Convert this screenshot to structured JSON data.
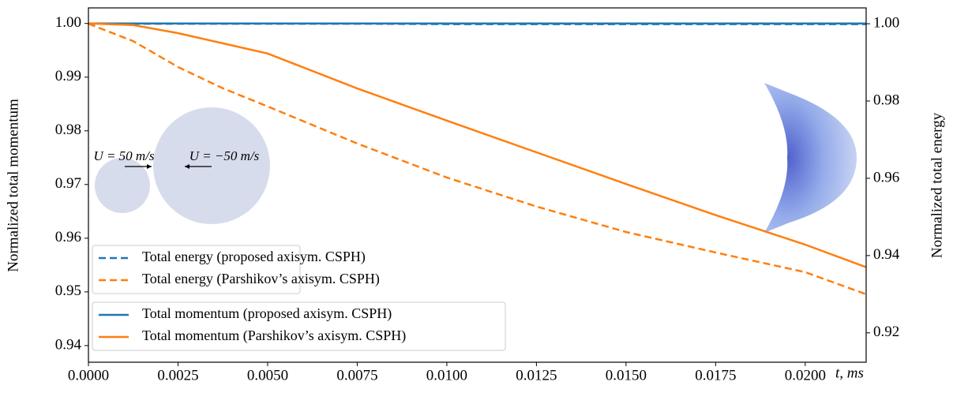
{
  "chart_data": {
    "type": "line",
    "xlabel": "t, ms",
    "ylabel": "Normalized total momentum",
    "y2label": "Normalized total energy",
    "annotations": [
      "U = 50 m/s",
      "U = −50 m/s"
    ],
    "x": [
      0,
      0.00125,
      0.0025,
      0.00375,
      0.005,
      0.0075,
      0.01,
      0.0125,
      0.015,
      0.0175,
      0.02,
      0.0217
    ],
    "series": [
      {
        "name": "Total energy (proposed axisym. CSPH)",
        "color": "#1f77b4",
        "linestyle": "dashed",
        "axis": "y2",
        "values": [
          1.0,
          1.0,
          1.0,
          1.0,
          1.0,
          1.0,
          0.9999,
          0.9999,
          0.9999,
          0.9999,
          0.9999,
          0.9999
        ]
      },
      {
        "name": "Total energy (Parshikov’s axisym. CSPH)",
        "color": "#ff7f0e",
        "linestyle": "dashed",
        "axis": "y2",
        "values": [
          1.0,
          0.9955,
          0.9888,
          0.9833,
          0.9786,
          0.969,
          0.9602,
          0.9527,
          0.9461,
          0.9408,
          0.9357,
          0.93
        ]
      },
      {
        "name": "Total momentum (proposed axisym. CSPH)",
        "color": "#1f77b4",
        "linestyle": "solid",
        "values": [
          1.0,
          1.0,
          1.0,
          1.0,
          1.0,
          1.0,
          1.0,
          1.0,
          1.0,
          1.0,
          1.0,
          1.0
        ]
      },
      {
        "name": "Total momentum (Parshikov’s axisym. CSPH)",
        "color": "#ff7f0e",
        "linestyle": "solid",
        "values": [
          1.0,
          0.9997,
          0.9982,
          0.9963,
          0.9944,
          0.9879,
          0.9819,
          0.976,
          0.9701,
          0.9643,
          0.9588,
          0.9546
        ]
      }
    ],
    "xlim": [
      0,
      0.0217
    ],
    "xticks": [
      {
        "value": 0,
        "label": "0.0000"
      },
      {
        "value": 0.0025,
        "label": "0.0025"
      },
      {
        "value": 0.005,
        "label": "0.0050"
      },
      {
        "value": 0.0075,
        "label": "0.0075"
      },
      {
        "value": 0.01,
        "label": "0.0100"
      },
      {
        "value": 0.0125,
        "label": "0.0125"
      },
      {
        "value": 0.015,
        "label": "0.0150"
      },
      {
        "value": 0.0175,
        "label": "0.0175"
      },
      {
        "value": 0.02,
        "label": "0.0200"
      }
    ],
    "ylim": [
      0.9369,
      1.0029
    ],
    "yticks": [
      {
        "value": 0.94,
        "label": "0.94"
      },
      {
        "value": 0.95,
        "label": "0.95"
      },
      {
        "value": 0.96,
        "label": "0.96"
      },
      {
        "value": 0.97,
        "label": "0.97"
      },
      {
        "value": 0.98,
        "label": "0.98"
      },
      {
        "value": 0.99,
        "label": "0.99"
      },
      {
        "value": 1.0,
        "label": "1.00"
      }
    ],
    "y2lim": [
      0.9124,
      1.0041
    ],
    "y2ticks": [
      {
        "value": 0.92,
        "label": "0.92"
      },
      {
        "value": 0.94,
        "label": "0.94"
      },
      {
        "value": 0.96,
        "label": "0.96"
      },
      {
        "value": 0.98,
        "label": "0.98"
      },
      {
        "value": 1.0,
        "label": "1.00"
      }
    ],
    "grid": true
  }
}
